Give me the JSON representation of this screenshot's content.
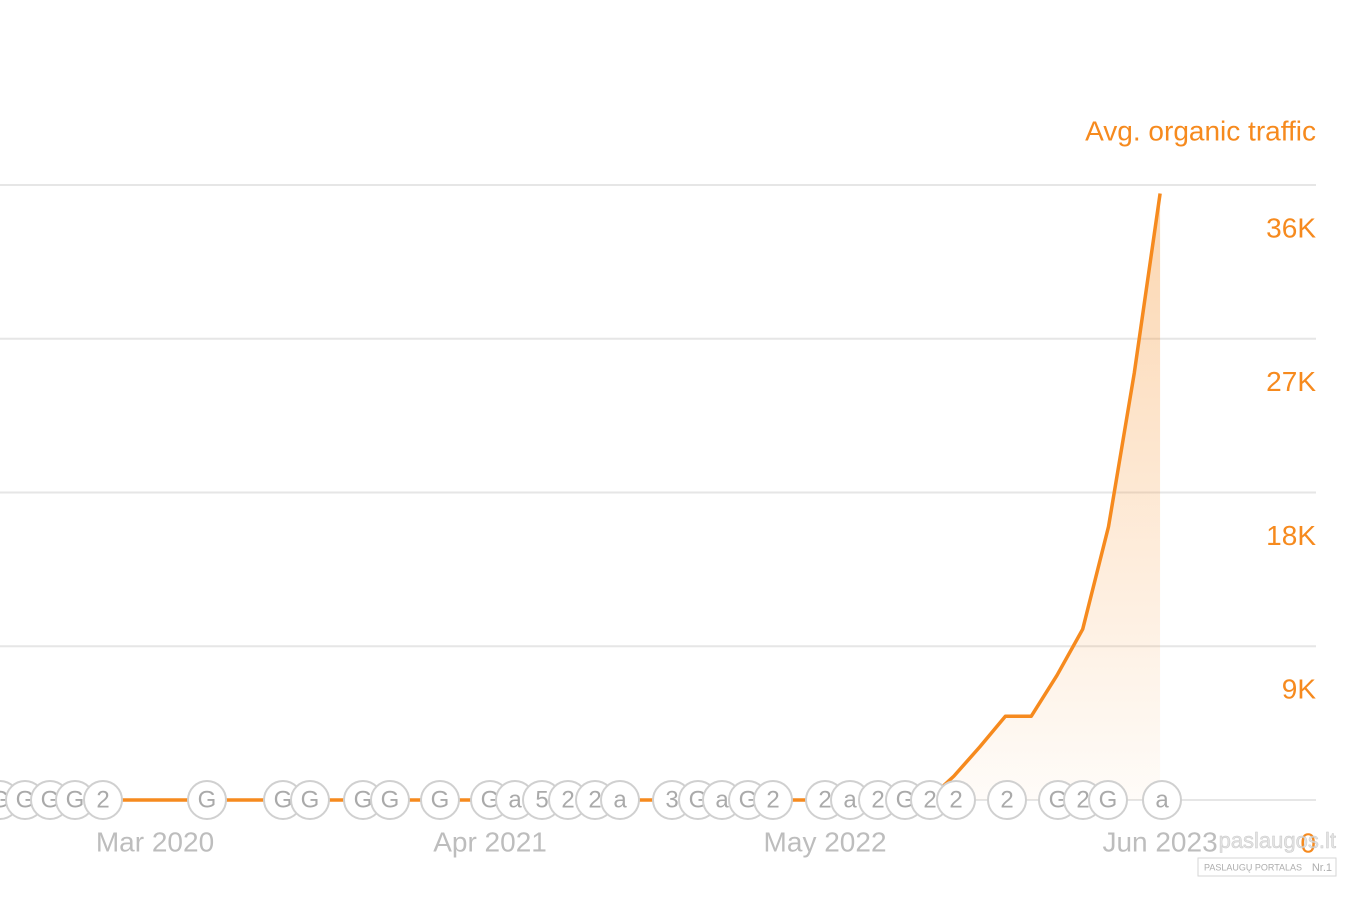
{
  "chart_data": {
    "type": "area",
    "title": "Avg. organic traffic",
    "categories": [
      null,
      null,
      null,
      null,
      null,
      null,
      "Mar 2020",
      null,
      null,
      null,
      null,
      null,
      null,
      null,
      null,
      null,
      null,
      null,
      null,
      "Apr 2021",
      null,
      null,
      null,
      null,
      null,
      null,
      null,
      null,
      null,
      null,
      null,
      null,
      "May 2022",
      null,
      null,
      null,
      null,
      null,
      null,
      null,
      null,
      null,
      null,
      null,
      null,
      "Jun 2023"
    ],
    "series": [
      {
        "name": "Avg. organic traffic",
        "color": "#f68a1e",
        "values": [
          0,
          0,
          0,
          0,
          0,
          0,
          0,
          0,
          0,
          0,
          0,
          0,
          0,
          0,
          0,
          0,
          0,
          0,
          0,
          0,
          0,
          0,
          0,
          0,
          0,
          0,
          0,
          0,
          0,
          0,
          0,
          0,
          0,
          0,
          0,
          0,
          0,
          1400,
          3100,
          4900,
          4900,
          7300,
          10000,
          16000,
          25000,
          35500
        ]
      }
    ],
    "ylim": [
      0,
      36000
    ],
    "yticks": [
      {
        "value": 0,
        "label": "0"
      },
      {
        "value": 9000,
        "label": "9K"
      },
      {
        "value": 18000,
        "label": "18K"
      },
      {
        "value": 27000,
        "label": "27K"
      },
      {
        "value": 36000,
        "label": "36K"
      }
    ],
    "grid": true,
    "axis_side": "right",
    "event_markers": [
      "G",
      "G",
      "G",
      "G",
      "2",
      "G",
      "G",
      "G",
      "G",
      "G",
      "G",
      "G",
      "a",
      "5",
      "2",
      "2",
      "a",
      "3",
      "G",
      "a",
      "G",
      "2",
      "2",
      "a",
      "2",
      "G",
      "2",
      "2",
      "2",
      "G",
      "2",
      "G",
      "a"
    ]
  },
  "watermark": {
    "brand": "paslaugos.lt",
    "tagline": "PASLAUGŲ PORTALAS",
    "badge": "Nr.1"
  }
}
